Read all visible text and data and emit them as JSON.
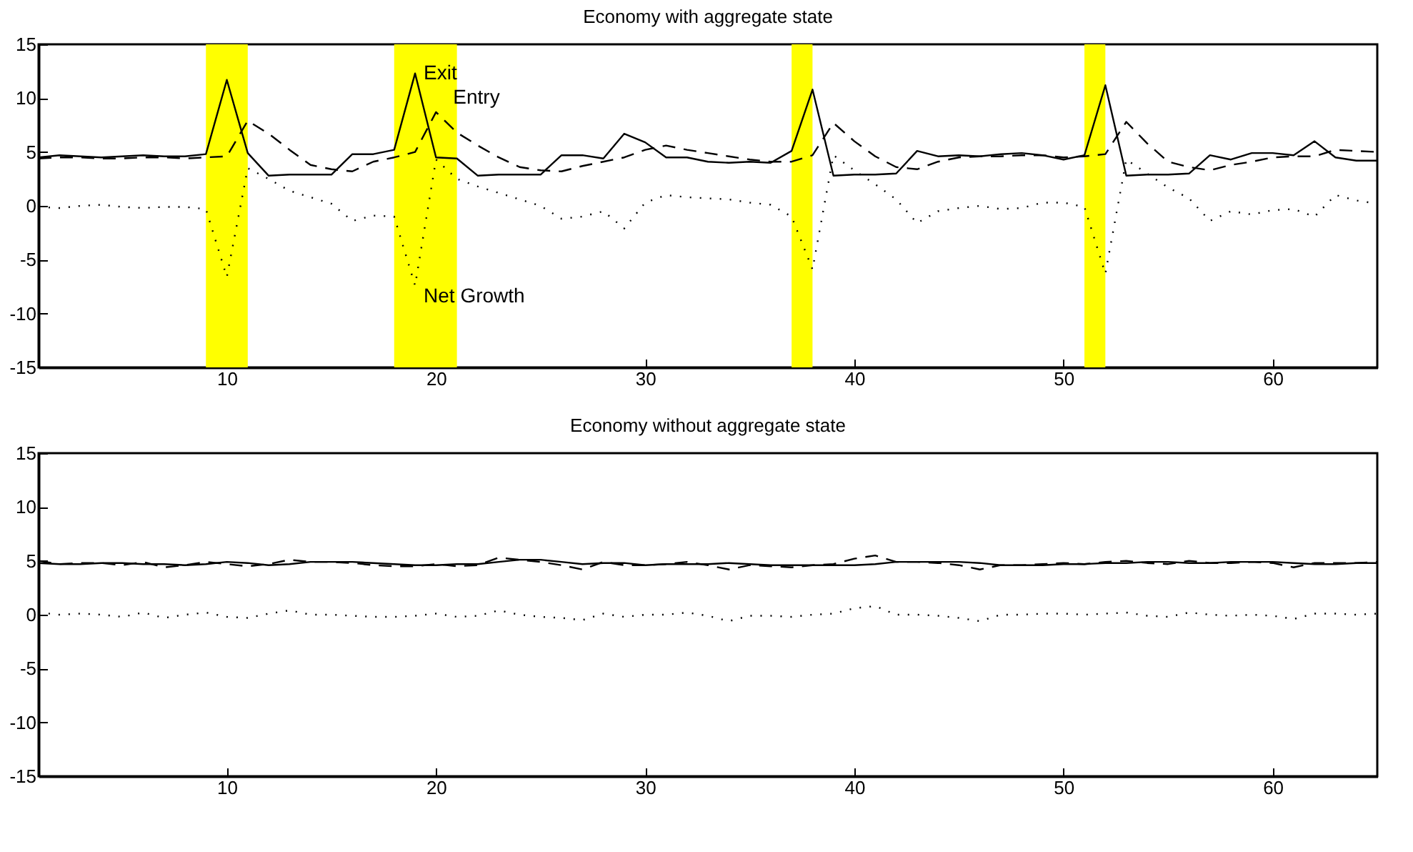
{
  "chart_data": [
    {
      "type": "line",
      "title": "Economy with aggregate state",
      "x": [
        1,
        2,
        3,
        4,
        5,
        6,
        7,
        8,
        9,
        10,
        11,
        12,
        13,
        14,
        15,
        16,
        17,
        18,
        19,
        20,
        21,
        22,
        23,
        24,
        25,
        26,
        27,
        28,
        29,
        30,
        31,
        32,
        33,
        34,
        35,
        36,
        37,
        38,
        39,
        40,
        41,
        42,
        43,
        44,
        45,
        46,
        47,
        48,
        49,
        50,
        51,
        52,
        53,
        54,
        55,
        56,
        57,
        58,
        59,
        60,
        61,
        62,
        63,
        64,
        65
      ],
      "series": [
        {
          "name": "Exit",
          "color": "#000000",
          "line_style": "solid",
          "values": [
            4.5,
            4.7,
            4.6,
            4.5,
            4.6,
            4.7,
            4.6,
            4.6,
            4.8,
            11.7,
            4.9,
            2.8,
            2.9,
            2.9,
            2.9,
            4.8,
            4.8,
            5.2,
            12.3,
            4.5,
            4.4,
            2.8,
            2.9,
            2.9,
            2.9,
            4.7,
            4.7,
            4.4,
            6.7,
            5.9,
            4.5,
            4.5,
            4.1,
            4.0,
            4.1,
            4.0,
            5.1,
            10.8,
            2.8,
            2.9,
            2.9,
            3.0,
            5.1,
            4.6,
            4.7,
            4.6,
            4.8,
            4.9,
            4.7,
            4.3,
            4.7,
            11.2,
            2.8,
            2.9,
            2.9,
            3.0,
            4.7,
            4.3,
            4.9,
            4.9,
            4.7,
            6.0,
            4.5,
            4.2,
            4.2
          ]
        },
        {
          "name": "Entry",
          "color": "#000000",
          "line_style": "dashed",
          "values": [
            4.4,
            4.5,
            4.5,
            4.4,
            4.4,
            4.5,
            4.5,
            4.4,
            4.5,
            4.6,
            7.9,
            6.7,
            5.2,
            3.8,
            3.4,
            3.2,
            4.1,
            4.5,
            5.0,
            8.7,
            6.8,
            5.6,
            4.5,
            3.6,
            3.3,
            3.2,
            3.7,
            4.1,
            4.5,
            5.2,
            5.6,
            5.2,
            4.9,
            4.6,
            4.3,
            4.1,
            4.1,
            4.7,
            7.7,
            6.0,
            4.6,
            3.6,
            3.4,
            4.1,
            4.5,
            4.6,
            4.6,
            4.7,
            4.7,
            4.5,
            4.6,
            4.8,
            7.8,
            5.8,
            4.1,
            3.6,
            3.3,
            3.8,
            4.1,
            4.5,
            4.6,
            4.6,
            5.2,
            5.1,
            5.0
          ]
        },
        {
          "name": "Net Growth",
          "color": "#000000",
          "line_style": "dotted",
          "values": [
            -0.1,
            -0.2,
            0,
            0.1,
            -0.1,
            -0.2,
            -0.1,
            -0.1,
            -0.3,
            -6.6,
            3.5,
            2.5,
            1.4,
            0.8,
            0.2,
            -1.4,
            -0.9,
            -1.0,
            -7.4,
            4.3,
            2.5,
            1.8,
            1.2,
            0.6,
            0,
            -1.2,
            -1.0,
            -0.5,
            -2.1,
            0.3,
            1.0,
            0.8,
            0.7,
            0.6,
            0.3,
            0.1,
            -1.0,
            -5.9,
            4.7,
            3.3,
            2.0,
            0.6,
            -1.6,
            -0.5,
            -0.2,
            0,
            -0.3,
            -0.2,
            0.3,
            0.3,
            -0.1,
            -6.3,
            4.3,
            3.0,
            1.7,
            0.7,
            -1.4,
            -0.5,
            -0.8,
            -0.4,
            -0.3,
            -1.0,
            1.0,
            0.5,
            0.2
          ]
        }
      ],
      "bands": [
        {
          "axis": "x",
          "from": 9,
          "to": 11,
          "color": "#ffff00"
        },
        {
          "axis": "x",
          "from": 18,
          "to": 21,
          "color": "#ffff00"
        },
        {
          "axis": "x",
          "from": 37,
          "to": 38,
          "color": "#ffff00"
        },
        {
          "axis": "x",
          "from": 51,
          "to": 52,
          "color": "#ffff00"
        }
      ],
      "xlim": [
        1,
        65
      ],
      "xticks": [
        10,
        20,
        30,
        40,
        50,
        60
      ],
      "ylim": [
        -15,
        15
      ],
      "yticks": [
        -15,
        -10,
        -5,
        0,
        5,
        10,
        15
      ],
      "grid": false
    },
    {
      "type": "line",
      "title": "Economy without aggregate state",
      "x": [
        1,
        2,
        3,
        4,
        5,
        6,
        7,
        8,
        9,
        10,
        11,
        12,
        13,
        14,
        15,
        16,
        17,
        18,
        19,
        20,
        21,
        22,
        23,
        24,
        25,
        26,
        27,
        28,
        29,
        30,
        31,
        32,
        33,
        34,
        35,
        36,
        37,
        38,
        39,
        40,
        41,
        42,
        43,
        44,
        45,
        46,
        47,
        48,
        49,
        50,
        51,
        52,
        53,
        54,
        55,
        56,
        57,
        58,
        59,
        60,
        61,
        62,
        63,
        64,
        65
      ],
      "series": [
        {
          "color": "#000000",
          "line_style": "solid",
          "values": [
            4.8,
            4.7,
            4.7,
            4.8,
            4.8,
            4.7,
            4.7,
            4.6,
            4.7,
            4.9,
            4.8,
            4.6,
            4.7,
            4.9,
            4.9,
            4.9,
            4.8,
            4.7,
            4.6,
            4.6,
            4.7,
            4.7,
            4.9,
            5.1,
            5.1,
            4.9,
            4.7,
            4.8,
            4.8,
            4.6,
            4.7,
            4.7,
            4.7,
            4.8,
            4.7,
            4.6,
            4.6,
            4.6,
            4.6,
            4.6,
            4.7,
            4.9,
            4.9,
            4.9,
            4.9,
            4.8,
            4.6,
            4.6,
            4.6,
            4.7,
            4.7,
            4.8,
            4.8,
            4.9,
            4.9,
            4.8,
            4.8,
            4.9,
            4.9,
            4.9,
            4.8,
            4.7,
            4.7,
            4.8,
            4.8
          ]
        },
        {
          "color": "#000000",
          "line_style": "dashed",
          "values": [
            5.0,
            4.7,
            4.8,
            4.8,
            4.6,
            4.9,
            4.4,
            4.6,
            4.9,
            4.7,
            4.5,
            4.7,
            5.1,
            4.9,
            4.9,
            4.8,
            4.6,
            4.5,
            4.5,
            4.7,
            4.5,
            4.6,
            5.3,
            5.1,
            4.9,
            4.6,
            4.2,
            4.9,
            4.6,
            4.6,
            4.7,
            4.9,
            4.6,
            4.2,
            4.6,
            4.5,
            4.4,
            4.6,
            4.7,
            5.2,
            5.5,
            4.9,
            4.9,
            4.8,
            4.6,
            4.2,
            4.6,
            4.6,
            4.7,
            4.8,
            4.7,
            4.9,
            5.0,
            4.8,
            4.7,
            5.0,
            4.8,
            4.8,
            4.9,
            4.8,
            4.4,
            4.8,
            4.8,
            4.8,
            4.9
          ]
        },
        {
          "color": "#000000",
          "line_style": "dotted",
          "values": [
            0.2,
            0,
            0.1,
            0,
            -0.2,
            0.2,
            -0.3,
            0,
            0.2,
            -0.2,
            -0.3,
            0.1,
            0.4,
            0,
            0,
            -0.1,
            -0.2,
            -0.2,
            -0.1,
            0.1,
            -0.2,
            -0.1,
            0.4,
            0,
            -0.2,
            -0.3,
            -0.5,
            0.1,
            -0.2,
            0,
            0,
            0.2,
            -0.1,
            -0.6,
            -0.1,
            -0.1,
            -0.2,
            0,
            0.1,
            0.6,
            0.8,
            0,
            0,
            -0.1,
            -0.3,
            -0.6,
            0,
            0,
            0.1,
            0.1,
            0,
            0.1,
            0.2,
            -0.1,
            -0.2,
            0.2,
            0,
            -0.1,
            0,
            -0.1,
            -0.4,
            0.1,
            0.1,
            0,
            0.1
          ]
        }
      ],
      "xlim": [
        1,
        65
      ],
      "xticks": [
        10,
        20,
        30,
        40,
        50,
        60
      ],
      "ylim": [
        -15,
        15
      ],
      "yticks": [
        -15,
        -10,
        -5,
        0,
        5,
        10,
        15
      ],
      "grid": false
    }
  ]
}
